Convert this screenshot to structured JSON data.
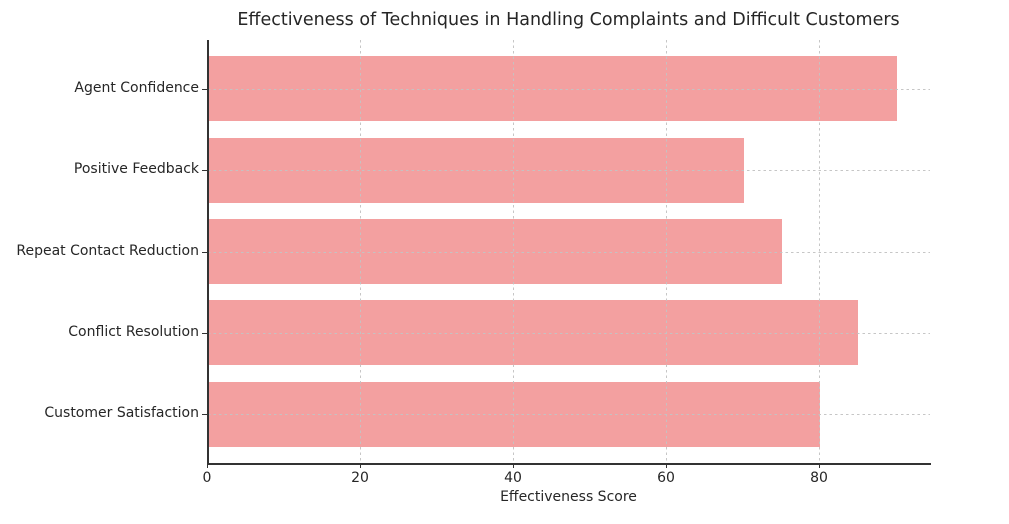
{
  "chart_data": {
    "type": "bar",
    "orientation": "horizontal",
    "title": "Effectiveness of Techniques in Handling Complaints and Difficult Customers",
    "xlabel": "Effectiveness Score",
    "ylabel": "",
    "categories": [
      "Agent Confidence",
      "Positive Feedback",
      "Repeat Contact Reduction",
      "Conflict Resolution",
      "Customer Satisfaction"
    ],
    "values": [
      90,
      70,
      75,
      85,
      80
    ],
    "xticks": [
      0,
      20,
      40,
      60,
      80
    ],
    "xlim": [
      0,
      94.5
    ],
    "grid": "dashed gridlines on both axes, drawn above bars",
    "legend": "none",
    "colors": {
      "bar": "#f3a0a0",
      "grid": "#c3c3c3",
      "spine": "#333333",
      "text": "#262626",
      "background": "#ffffff"
    }
  }
}
